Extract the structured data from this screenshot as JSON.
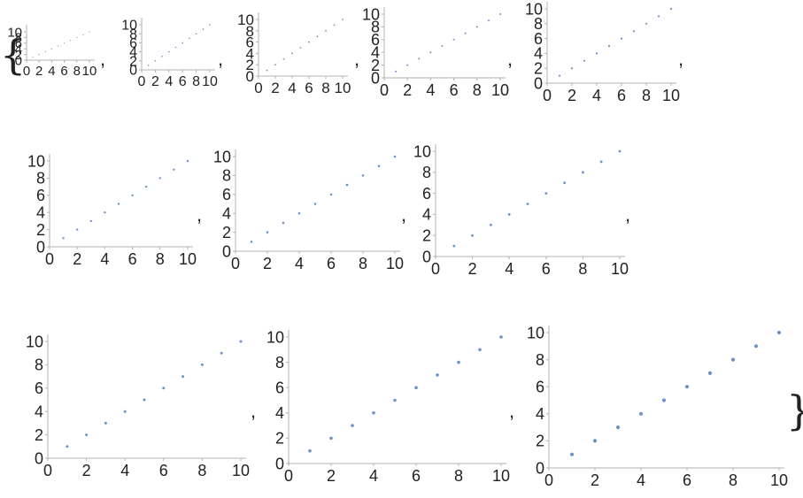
{
  "chart_data": [
    {
      "type": "scatter",
      "x": [
        1,
        2,
        3,
        4,
        5,
        6,
        7,
        8,
        9,
        10
      ],
      "y": [
        1,
        2,
        3,
        4,
        5,
        6,
        7,
        8,
        9,
        10
      ],
      "xlim": [
        0,
        10
      ],
      "ylim": [
        0,
        10
      ],
      "xticks": [
        "0",
        "2",
        "4",
        "6",
        "8",
        "10"
      ],
      "yticks": [
        "0",
        "2",
        "4",
        "6",
        "8",
        "10"
      ]
    },
    {
      "type": "scatter",
      "x": [
        1,
        2,
        3,
        4,
        5,
        6,
        7,
        8,
        9,
        10
      ],
      "y": [
        1,
        2,
        3,
        4,
        5,
        6,
        7,
        8,
        9,
        10
      ],
      "xlim": [
        0,
        10
      ],
      "ylim": [
        0,
        10
      ],
      "xticks": [
        "0",
        "2",
        "4",
        "6",
        "8",
        "10"
      ],
      "yticks": [
        "0",
        "2",
        "4",
        "6",
        "8",
        "10"
      ]
    },
    {
      "type": "scatter",
      "x": [
        1,
        2,
        3,
        4,
        5,
        6,
        7,
        8,
        9,
        10
      ],
      "y": [
        1,
        2,
        3,
        4,
        5,
        6,
        7,
        8,
        9,
        10
      ],
      "xlim": [
        0,
        10
      ],
      "ylim": [
        0,
        10
      ],
      "xticks": [
        "0",
        "2",
        "4",
        "6",
        "8",
        "10"
      ],
      "yticks": [
        "0",
        "2",
        "4",
        "6",
        "8",
        "10"
      ]
    },
    {
      "type": "scatter",
      "x": [
        1,
        2,
        3,
        4,
        5,
        6,
        7,
        8,
        9,
        10
      ],
      "y": [
        1,
        2,
        3,
        4,
        5,
        6,
        7,
        8,
        9,
        10
      ],
      "xlim": [
        0,
        10
      ],
      "ylim": [
        0,
        10
      ],
      "xticks": [
        "0",
        "2",
        "4",
        "6",
        "8",
        "10"
      ],
      "yticks": [
        "0",
        "2",
        "4",
        "6",
        "8",
        "10"
      ]
    },
    {
      "type": "scatter",
      "x": [
        1,
        2,
        3,
        4,
        5,
        6,
        7,
        8,
        9,
        10
      ],
      "y": [
        1,
        2,
        3,
        4,
        5,
        6,
        7,
        8,
        9,
        10
      ],
      "xlim": [
        0,
        10
      ],
      "ylim": [
        0,
        10
      ],
      "xticks": [
        "0",
        "2",
        "4",
        "6",
        "8",
        "10"
      ],
      "yticks": [
        "0",
        "2",
        "4",
        "6",
        "8",
        "10"
      ]
    },
    {
      "type": "scatter",
      "x": [
        1,
        2,
        3,
        4,
        5,
        6,
        7,
        8,
        9,
        10
      ],
      "y": [
        1,
        2,
        3,
        4,
        5,
        6,
        7,
        8,
        9,
        10
      ],
      "xlim": [
        0,
        10
      ],
      "ylim": [
        0,
        10
      ],
      "xticks": [
        "0",
        "2",
        "4",
        "6",
        "8",
        "10"
      ],
      "yticks": [
        "0",
        "2",
        "4",
        "6",
        "8",
        "10"
      ]
    },
    {
      "type": "scatter",
      "x": [
        1,
        2,
        3,
        4,
        5,
        6,
        7,
        8,
        9,
        10
      ],
      "y": [
        1,
        2,
        3,
        4,
        5,
        6,
        7,
        8,
        9,
        10
      ],
      "xlim": [
        0,
        10
      ],
      "ylim": [
        0,
        10
      ],
      "xticks": [
        "0",
        "2",
        "4",
        "6",
        "8",
        "10"
      ],
      "yticks": [
        "0",
        "2",
        "4",
        "6",
        "8",
        "10"
      ]
    },
    {
      "type": "scatter",
      "x": [
        1,
        2,
        3,
        4,
        5,
        6,
        7,
        8,
        9,
        10
      ],
      "y": [
        1,
        2,
        3,
        4,
        5,
        6,
        7,
        8,
        9,
        10
      ],
      "xlim": [
        0,
        10
      ],
      "ylim": [
        0,
        10
      ],
      "xticks": [
        "0",
        "2",
        "4",
        "6",
        "8",
        "10"
      ],
      "yticks": [
        "0",
        "2",
        "4",
        "6",
        "8",
        "10"
      ]
    },
    {
      "type": "scatter",
      "x": [
        1,
        2,
        3,
        4,
        5,
        6,
        7,
        8,
        9,
        10
      ],
      "y": [
        1,
        2,
        3,
        4,
        5,
        6,
        7,
        8,
        9,
        10
      ],
      "xlim": [
        0,
        10
      ],
      "ylim": [
        0,
        10
      ],
      "xticks": [
        "0",
        "2",
        "4",
        "6",
        "8",
        "10"
      ],
      "yticks": [
        "0",
        "2",
        "4",
        "6",
        "8",
        "10"
      ]
    },
    {
      "type": "scatter",
      "x": [
        1,
        2,
        3,
        4,
        5,
        6,
        7,
        8,
        9,
        10
      ],
      "y": [
        1,
        2,
        3,
        4,
        5,
        6,
        7,
        8,
        9,
        10
      ],
      "xlim": [
        0,
        10
      ],
      "ylim": [
        0,
        10
      ],
      "xticks": [
        "0",
        "2",
        "4",
        "6",
        "8",
        "10"
      ],
      "yticks": [
        "0",
        "2",
        "4",
        "6",
        "8",
        "10"
      ]
    },
    {
      "type": "scatter",
      "x": [
        1,
        2,
        3,
        4,
        5,
        6,
        7,
        8,
        9,
        10
      ],
      "y": [
        1,
        2,
        3,
        4,
        5,
        6,
        7,
        8,
        9,
        10
      ],
      "xlim": [
        0,
        10
      ],
      "ylim": [
        0,
        10
      ],
      "xticks": [
        "0",
        "2",
        "4",
        "6",
        "8",
        "10"
      ],
      "yticks": [
        "0",
        "2",
        "4",
        "6",
        "8",
        "10"
      ]
    }
  ],
  "punctuation": {
    "open_brace": "{",
    "close_brace": "}",
    "comma": ","
  },
  "colors": {
    "point": "#6c94c8",
    "axis": "#b3b3b3",
    "text": "#222222"
  }
}
